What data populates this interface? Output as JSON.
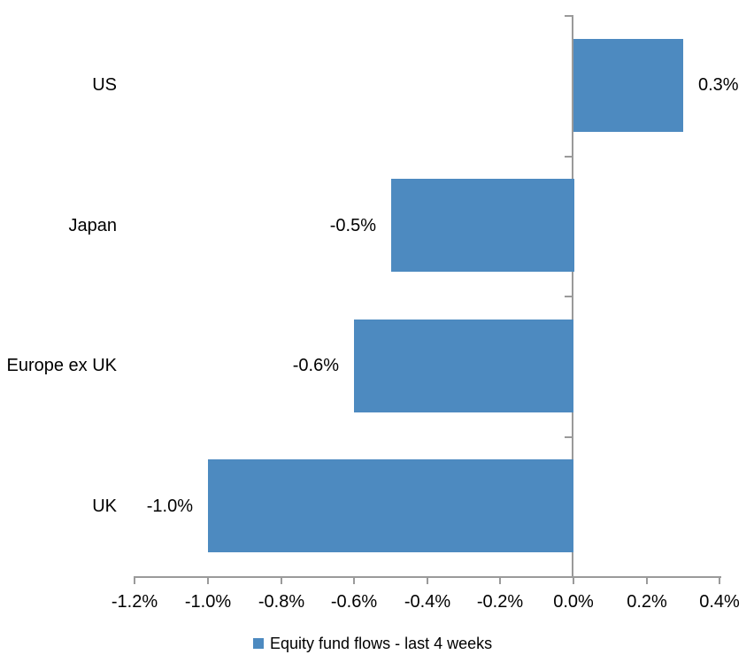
{
  "chart_data": {
    "type": "bar",
    "orientation": "horizontal",
    "title": "",
    "xlabel": "",
    "ylabel": "",
    "categories": [
      "US",
      "Japan",
      "Europe ex UK",
      "UK"
    ],
    "values": [
      0.3,
      -0.5,
      -0.6,
      -1.0
    ],
    "bar_labels": [
      "0.3%",
      "-0.5%",
      "-0.6%",
      "-1.0%"
    ],
    "series": [
      {
        "name": "Equity fund flows - last 4 weeks",
        "values": [
          0.3,
          -0.5,
          -0.6,
          -1.0
        ]
      }
    ],
    "x_ticks": [
      {
        "label": "-1.2%",
        "value": -1.2
      },
      {
        "label": "-1.0%",
        "value": -1.0
      },
      {
        "label": "-0.8%",
        "value": -0.8
      },
      {
        "label": "-0.6%",
        "value": -0.6
      },
      {
        "label": "-0.4%",
        "value": -0.4
      },
      {
        "label": "-0.2%",
        "value": -0.2
      },
      {
        "label": "0.0%",
        "value": 0.0
      },
      {
        "label": "0.2%",
        "value": 0.2
      },
      {
        "label": "0.4%",
        "value": 0.4
      }
    ],
    "xlim": [
      -1.2,
      0.4
    ],
    "grid": false,
    "legend": {
      "position": "bottom",
      "label": "Equity fund flows - last 4 weeks"
    },
    "colors": {
      "bar": "#4d8ac0",
      "axis": "#9a9a9a",
      "text": "#000000"
    }
  }
}
